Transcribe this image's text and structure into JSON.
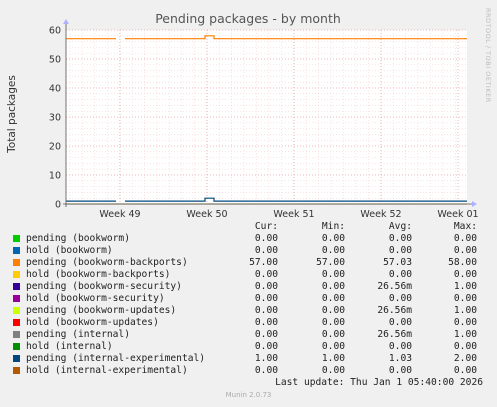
{
  "chart_data": {
    "type": "line",
    "title": "Pending packages - by month",
    "ylabel": "Total packages",
    "xlabel": "",
    "ylim": [
      0,
      60
    ],
    "yticks": [
      0,
      10,
      20,
      30,
      40,
      50,
      60
    ],
    "x_categories": [
      "Week 49",
      "Week 50",
      "Week 51",
      "Week 52",
      "Week 01"
    ],
    "grid": true,
    "series": [
      {
        "name": "pending (bookworm)",
        "color": "#00cc00",
        "cur": "0.00",
        "min": "0.00",
        "avg": "0.00",
        "max": "0.00",
        "level": 0
      },
      {
        "name": "hold (bookworm)",
        "color": "#0066b3",
        "cur": "0.00",
        "min": "0.00",
        "avg": "0.00",
        "max": "0.00",
        "level": 0
      },
      {
        "name": "pending (bookworm-backports)",
        "color": "#ff8000",
        "cur": "57.00",
        "min": "57.00",
        "avg": "57.03",
        "max": "58.00",
        "level": 57
      },
      {
        "name": "hold (bookworm-backports)",
        "color": "#ffcc00",
        "cur": "0.00",
        "min": "0.00",
        "avg": "0.00",
        "max": "0.00",
        "level": 0
      },
      {
        "name": "pending (bookworm-security)",
        "color": "#330099",
        "cur": "0.00",
        "min": "0.00",
        "avg": "26.56m",
        "max": "1.00",
        "level": 0
      },
      {
        "name": "hold (bookworm-security)",
        "color": "#990099",
        "cur": "0.00",
        "min": "0.00",
        "avg": "0.00",
        "max": "0.00",
        "level": 0
      },
      {
        "name": "pending (bookworm-updates)",
        "color": "#ccff00",
        "cur": "0.00",
        "min": "0.00",
        "avg": "26.56m",
        "max": "1.00",
        "level": 0
      },
      {
        "name": "hold (bookworm-updates)",
        "color": "#ff0000",
        "cur": "0.00",
        "min": "0.00",
        "avg": "0.00",
        "max": "0.00",
        "level": 0
      },
      {
        "name": "pending (internal)",
        "color": "#808080",
        "cur": "0.00",
        "min": "0.00",
        "avg": "26.56m",
        "max": "1.00",
        "level": 0
      },
      {
        "name": "hold (internal)",
        "color": "#008f00",
        "cur": "0.00",
        "min": "0.00",
        "avg": "0.00",
        "max": "0.00",
        "level": 0
      },
      {
        "name": "pending (internal-experimental)",
        "color": "#00487d",
        "cur": "1.00",
        "min": "1.00",
        "avg": "1.03",
        "max": "2.00",
        "level": 1
      },
      {
        "name": "hold (internal-experimental)",
        "color": "#b35a00",
        "cur": "0.00",
        "min": "0.00",
        "avg": "0.00",
        "max": "0.00",
        "level": 0
      }
    ]
  },
  "legend_headers": {
    "cur": "Cur:",
    "min": "Min:",
    "avg": "Avg:",
    "max": "Max:"
  },
  "last_update": "Last update: Thu Jan  1 05:40:00 2026",
  "footer": "Munin 2.0.73",
  "watermark": "RRDTOOL / TOBI OETIKER"
}
